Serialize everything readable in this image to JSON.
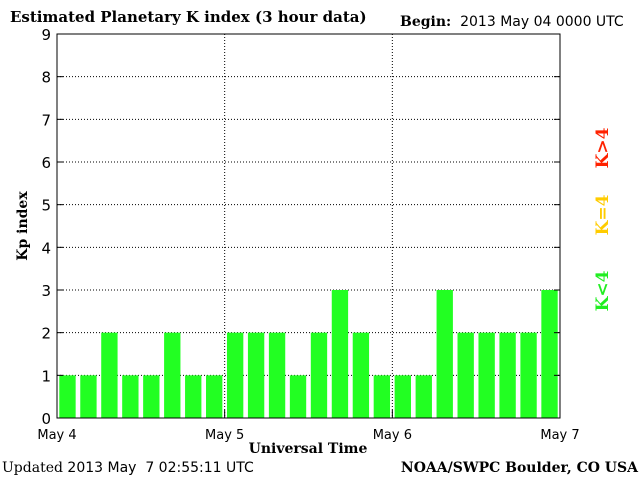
{
  "header": {
    "title": "Estimated Planetary K index (3 hour data)",
    "begin_label": "Begin:",
    "begin_value": "2013 May 04 0000 UTC"
  },
  "footer": {
    "updated_label": "Updated",
    "updated_value": "2013 May  7 02:55:11 UTC",
    "credit": "NOAA/SWPC Boulder, CO USA"
  },
  "legend": {
    "below": "K<4",
    "equal": "K=4",
    "above": "K>4",
    "colors": {
      "below": "#22ee22",
      "equal": "#ffcc00",
      "above": "#ff2200"
    }
  },
  "chart_data": {
    "type": "bar",
    "ylabel": "Kp index",
    "xlabel": "Universal Time",
    "ylim": [
      0,
      9
    ],
    "yticks": [
      "0",
      "1",
      "2",
      "3",
      "4",
      "5",
      "6",
      "7",
      "8",
      "9"
    ],
    "xticks": [
      "May 4",
      "May 5",
      "May 6",
      "May 7"
    ],
    "values": [
      1,
      1,
      2,
      1,
      1,
      2,
      1,
      1,
      2,
      2,
      2,
      1,
      2,
      3,
      2,
      1,
      1,
      1,
      3,
      2,
      2,
      2,
      2,
      3
    ],
    "bar_color": "#22ff22",
    "grid": true
  }
}
